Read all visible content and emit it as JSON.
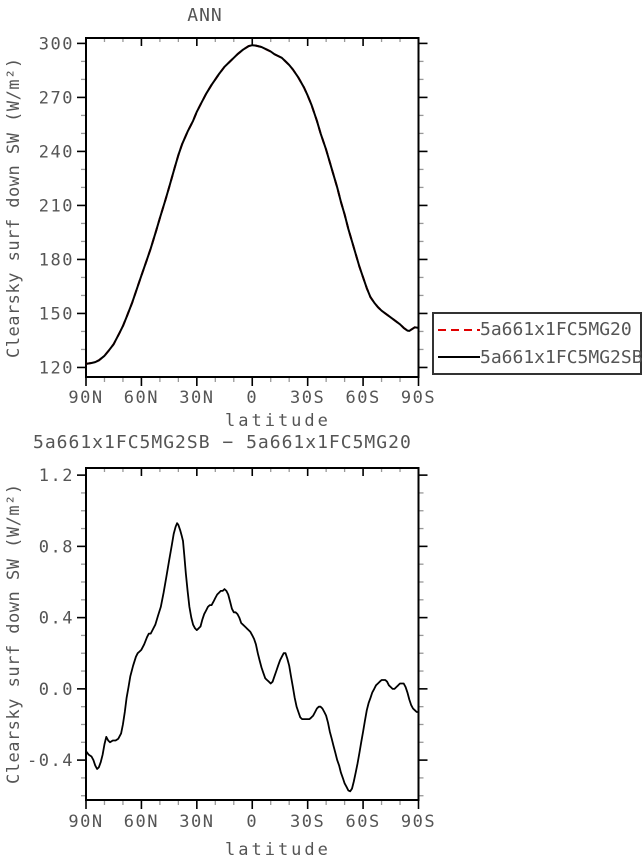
{
  "chart_data": [
    {
      "type": "line",
      "title": "ANN",
      "xlabel": "latitude",
      "ylabel": "Clearsky surf down SW (W/m²)",
      "x_axis": {
        "tick_labels": [
          "90N",
          "60N",
          "30N",
          "0",
          "30S",
          "60S",
          "90S"
        ],
        "tick_lats": [
          90,
          60,
          30,
          0,
          -30,
          -60,
          -90
        ],
        "minor_tick_lats": [
          80,
          70,
          50,
          40,
          20,
          10,
          -10,
          -20,
          -40,
          -50,
          -70,
          -80
        ],
        "range_lat": [
          90,
          -90
        ]
      },
      "y_axis": {
        "tick_labels": [
          "120",
          "150",
          "180",
          "210",
          "240",
          "270",
          "300"
        ],
        "tick_values": [
          120,
          150,
          180,
          210,
          240,
          270,
          300
        ],
        "minor_tick_values": [
          130,
          140,
          160,
          170,
          190,
          200,
          220,
          230,
          250,
          260,
          280,
          290
        ],
        "range": [
          114.7,
          303
        ]
      },
      "legend": {
        "position": "outside-right",
        "entries": [
          {
            "label": "5a661x1FC5MG20",
            "color": "#e00000",
            "line_style": "dashed"
          },
          {
            "label": "5a661x1FC5MG2SB",
            "color": "#000000",
            "line_style": "solid"
          }
        ]
      },
      "series": [
        {
          "name": "5a661x1FC5MG20",
          "color": "#e00000",
          "line_style": "dashed",
          "lat": [
            90,
            87,
            85,
            83,
            80,
            78,
            75,
            72,
            70,
            68,
            65,
            62,
            60,
            57,
            55,
            52,
            50,
            47,
            45,
            42,
            40,
            38,
            35,
            32,
            30,
            28,
            25,
            22,
            20,
            18,
            15,
            12,
            10,
            8,
            5,
            2,
            0,
            -2,
            -5,
            -8,
            -10,
            -12,
            -14,
            -16,
            -18,
            -20,
            -22,
            -25,
            -28,
            -30,
            -32,
            -35,
            -37,
            -40,
            -42,
            -44,
            -46,
            -48,
            -50,
            -52,
            -54,
            -56,
            -58,
            -60,
            -62,
            -64,
            -66,
            -68,
            -70,
            -72,
            -74,
            -76,
            -78,
            -80,
            -82,
            -84,
            -85,
            -86,
            -88,
            -90
          ],
          "values": [
            122,
            122.5,
            123,
            124,
            126.5,
            129,
            133,
            139,
            143,
            148,
            156,
            165,
            171,
            180,
            186,
            196,
            203,
            213,
            220,
            231,
            238,
            244,
            251,
            257,
            262,
            266,
            272,
            277,
            280,
            283,
            287,
            290,
            292,
            294,
            296.5,
            298.5,
            299,
            298.8,
            298,
            296.5,
            295.5,
            294,
            293,
            292,
            290,
            288,
            285.5,
            281,
            275.5,
            271,
            266,
            257,
            250,
            241,
            234,
            227,
            220,
            212,
            205,
            197,
            190,
            183,
            176,
            170,
            164,
            159,
            156,
            153.5,
            151.5,
            150,
            148.5,
            147,
            145.5,
            144,
            142,
            140.5,
            140.3,
            141,
            142.3,
            142
          ]
        },
        {
          "name": "5a661x1FC5MG2SB",
          "color": "#000000",
          "line_style": "solid",
          "lat": [
            90,
            87,
            85,
            83,
            80,
            78,
            75,
            72,
            70,
            68,
            65,
            62,
            60,
            57,
            55,
            52,
            50,
            47,
            45,
            42,
            40,
            38,
            35,
            32,
            30,
            28,
            25,
            22,
            20,
            18,
            15,
            12,
            10,
            8,
            5,
            2,
            0,
            -2,
            -5,
            -8,
            -10,
            -12,
            -14,
            -16,
            -18,
            -20,
            -22,
            -25,
            -28,
            -30,
            -32,
            -35,
            -37,
            -40,
            -42,
            -44,
            -46,
            -48,
            -50,
            -52,
            -54,
            -56,
            -58,
            -60,
            -62,
            -64,
            -66,
            -68,
            -70,
            -72,
            -74,
            -76,
            -78,
            -80,
            -82,
            -84,
            -85,
            -86,
            -88,
            -90
          ],
          "values": [
            122,
            122.5,
            123,
            124,
            126.5,
            129,
            133,
            139,
            143,
            148,
            156,
            165,
            171,
            180,
            186,
            196,
            203,
            213,
            220,
            231,
            238,
            244,
            251,
            257,
            262,
            266,
            272,
            277,
            280,
            283,
            287,
            290,
            292,
            294,
            296.5,
            298.5,
            299,
            298.8,
            298,
            296.5,
            295.5,
            294,
            293,
            292,
            290,
            288,
            285.5,
            281,
            275.5,
            271,
            266,
            257,
            250,
            241,
            234,
            227,
            220,
            212,
            205,
            197,
            190,
            183,
            176,
            170,
            164,
            159,
            156,
            153.5,
            151.5,
            150,
            148.5,
            147,
            145.5,
            144,
            142,
            140.5,
            140.3,
            141,
            142.3,
            142
          ]
        }
      ]
    },
    {
      "type": "line",
      "title": "5a661x1FC5MG2SB − 5a661x1FC5MG20",
      "xlabel": "latitude",
      "ylabel": "Clearsky surf down SW (W/m²)",
      "x_axis": {
        "tick_labels": [
          "90N",
          "60N",
          "30N",
          "0",
          "30S",
          "60S",
          "90S"
        ],
        "tick_lats": [
          90,
          60,
          30,
          0,
          -30,
          -60,
          -90
        ],
        "minor_tick_lats": [
          80,
          70,
          50,
          40,
          20,
          10,
          -10,
          -20,
          -40,
          -50,
          -70,
          -80
        ],
        "range_lat": [
          90,
          -90
        ]
      },
      "y_axis": {
        "tick_labels": [
          "-0.4",
          "0.0",
          "0.4",
          "0.8",
          "1.2"
        ],
        "tick_values": [
          -0.4,
          0.0,
          0.4,
          0.8,
          1.2
        ],
        "minor_tick_values": [
          -0.6,
          -0.5,
          -0.3,
          -0.2,
          -0.1,
          0.1,
          0.2,
          0.3,
          0.5,
          0.6,
          0.7,
          0.9,
          1.0,
          1.1
        ],
        "range": [
          -0.624,
          1.24
        ]
      },
      "legend": null,
      "series": [
        {
          "name": "5a661x1FC5MG2SB minus 5a661x1FC5MG20",
          "color": "#000000",
          "line_style": "solid",
          "lat": [
            90,
            88.5,
            87,
            86,
            85,
            84,
            83,
            82,
            81,
            80,
            79,
            78,
            77,
            75.5,
            74,
            72.5,
            71,
            70,
            69,
            68,
            67,
            66,
            64.5,
            63,
            62,
            61,
            60,
            58.5,
            57,
            56,
            55,
            54,
            52.5,
            51,
            49.5,
            48,
            46.5,
            45,
            43.5,
            42.5,
            41.5,
            40.7,
            40,
            39,
            38.2,
            37.5,
            36.8,
            36,
            35,
            34,
            33,
            32,
            31,
            30,
            29,
            28,
            27,
            26,
            25,
            24,
            23,
            22,
            21,
            20,
            19,
            18,
            17,
            16,
            15,
            14,
            13,
            12,
            11,
            10,
            9,
            8,
            7,
            6,
            5,
            4,
            3,
            2,
            1,
            0,
            -1,
            -2,
            -3,
            -4,
            -5,
            -6,
            -7,
            -8,
            -9,
            -10,
            -11,
            -12,
            -13,
            -14,
            -15,
            -16,
            -17,
            -18,
            -19,
            -20,
            -21,
            -22,
            -23,
            -24,
            -25,
            -26,
            -27,
            -28,
            -29,
            -30,
            -31,
            -32,
            -33,
            -34,
            -35,
            -36,
            -37,
            -38,
            -39,
            -40,
            -41,
            -42,
            -43,
            -44,
            -45,
            -46,
            -47,
            -48,
            -49,
            -50,
            -51,
            -52,
            -53,
            -54,
            -55,
            -56,
            -57,
            -58,
            -59,
            -60,
            -61,
            -62,
            -63,
            -64,
            -65,
            -66,
            -67,
            -68,
            -69,
            -70,
            -71,
            -72,
            -73,
            -74,
            -75,
            -76,
            -77,
            -78,
            -79,
            -80,
            -81,
            -82,
            -83,
            -84,
            -85,
            -86,
            -87,
            -88,
            -89,
            -90
          ],
          "values": [
            -0.35,
            -0.37,
            -0.38,
            -0.4,
            -0.43,
            -0.45,
            -0.44,
            -0.41,
            -0.37,
            -0.31,
            -0.27,
            -0.29,
            -0.3,
            -0.29,
            -0.29,
            -0.28,
            -0.25,
            -0.2,
            -0.13,
            -0.05,
            0.01,
            0.07,
            0.13,
            0.18,
            0.2,
            0.21,
            0.22,
            0.25,
            0.29,
            0.31,
            0.31,
            0.33,
            0.36,
            0.41,
            0.46,
            0.54,
            0.63,
            0.72,
            0.81,
            0.87,
            0.91,
            0.93,
            0.92,
            0.89,
            0.86,
            0.83,
            0.75,
            0.65,
            0.55,
            0.46,
            0.4,
            0.36,
            0.34,
            0.33,
            0.34,
            0.35,
            0.39,
            0.42,
            0.44,
            0.46,
            0.47,
            0.47,
            0.49,
            0.51,
            0.53,
            0.54,
            0.55,
            0.55,
            0.56,
            0.55,
            0.53,
            0.49,
            0.45,
            0.43,
            0.43,
            0.42,
            0.4,
            0.37,
            0.36,
            0.35,
            0.34,
            0.33,
            0.32,
            0.3,
            0.28,
            0.25,
            0.2,
            0.16,
            0.12,
            0.09,
            0.06,
            0.05,
            0.04,
            0.03,
            0.04,
            0.07,
            0.1,
            0.13,
            0.16,
            0.18,
            0.2,
            0.2,
            0.17,
            0.13,
            0.07,
            0.01,
            -0.05,
            -0.1,
            -0.13,
            -0.16,
            -0.17,
            -0.17,
            -0.17,
            -0.17,
            -0.17,
            -0.16,
            -0.15,
            -0.13,
            -0.11,
            -0.1,
            -0.1,
            -0.11,
            -0.13,
            -0.15,
            -0.19,
            -0.24,
            -0.28,
            -0.32,
            -0.36,
            -0.4,
            -0.43,
            -0.47,
            -0.5,
            -0.53,
            -0.55,
            -0.57,
            -0.575,
            -0.56,
            -0.52,
            -0.47,
            -0.42,
            -0.36,
            -0.3,
            -0.24,
            -0.18,
            -0.12,
            -0.08,
            -0.05,
            -0.02,
            0.0,
            0.02,
            0.03,
            0.04,
            0.05,
            0.05,
            0.05,
            0.04,
            0.02,
            0.01,
            0.0,
            0.0,
            0.01,
            0.02,
            0.03,
            0.03,
            0.03,
            0.01,
            -0.02,
            -0.06,
            -0.09,
            -0.11,
            -0.12,
            -0.13,
            -0.13
          ]
        }
      ]
    }
  ],
  "style": {
    "accent_red": "#e00000",
    "axis_color": "#000000",
    "minor_tick_color": "#999999",
    "text_color": "#555555"
  }
}
